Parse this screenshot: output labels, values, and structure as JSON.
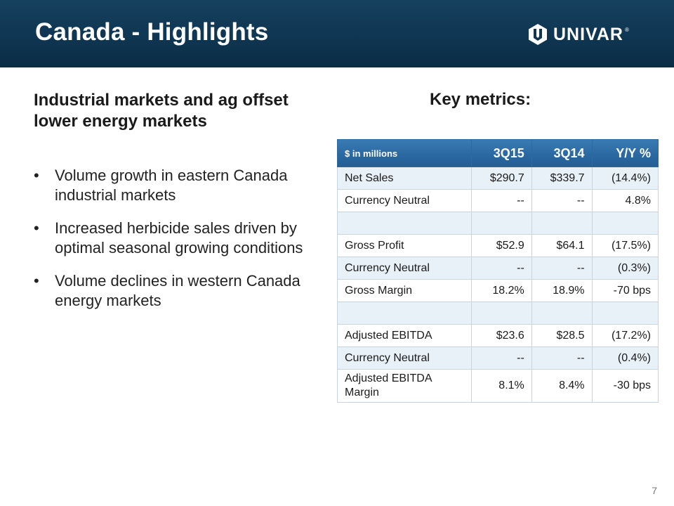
{
  "slide": {
    "title": "Canada - Highlights",
    "logo_text": "UNIVAR",
    "logo_reg": "®",
    "subheading": "Industrial markets and ag offset lower energy markets",
    "key_metrics_label": "Key metrics:",
    "bullet_marker": "•",
    "bullets": [
      "Volume growth in eastern Canada industrial markets",
      "Increased herbicide sales driven by optimal seasonal growing conditions",
      "Volume declines in western Canada energy markets"
    ],
    "page_number": "7"
  },
  "table": {
    "headers": [
      "$ in millions",
      "3Q15",
      "3Q14",
      "Y/Y %"
    ],
    "rows": [
      {
        "label": "Net Sales",
        "q15": "$290.7",
        "q14": "$339.7",
        "yoy": "(14.4%)"
      },
      {
        "label": "Currency Neutral",
        "q15": "--",
        "q14": "--",
        "yoy": "4.8%"
      },
      {
        "label": "",
        "q15": "",
        "q14": "",
        "yoy": ""
      },
      {
        "label": "Gross Profit",
        "q15": "$52.9",
        "q14": "$64.1",
        "yoy": "(17.5%)"
      },
      {
        "label": "Currency Neutral",
        "q15": "--",
        "q14": "--",
        "yoy": "(0.3%)"
      },
      {
        "label": "Gross Margin",
        "q15": "18.2%",
        "q14": "18.9%",
        "yoy": "-70 bps"
      },
      {
        "label": "",
        "q15": "",
        "q14": "",
        "yoy": ""
      },
      {
        "label": "Adjusted EBITDA",
        "q15": "$23.6",
        "q14": "$28.5",
        "yoy": "(17.2%)"
      },
      {
        "label": "Currency Neutral",
        "q15": "--",
        "q14": "--",
        "yoy": "(0.4%)"
      },
      {
        "label": "Adjusted EBITDA Margin",
        "q15": "8.1%",
        "q14": "8.4%",
        "yoy": "-30 bps"
      }
    ]
  },
  "colors": {
    "header_bar": "#0f3652",
    "table_header": "#2c6aa3",
    "row_band": "#e8f1f7"
  }
}
